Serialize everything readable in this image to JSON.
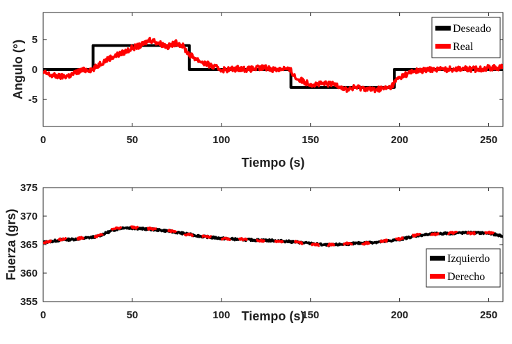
{
  "chart_data": [
    {
      "type": "line",
      "xlabel": "Tiempo (s)",
      "ylabel": "Angulo (°)",
      "xlim": [
        0,
        258
      ],
      "ylim": [
        -9.5,
        9.5
      ],
      "xticks": [
        0,
        50,
        100,
        150,
        200,
        250
      ],
      "yticks": [
        -5,
        0,
        5
      ],
      "legend_position": "top-right",
      "series": [
        {
          "name": "Deseado",
          "color": "#000000",
          "style": "step",
          "x": [
            0,
            28,
            28,
            82,
            82,
            139,
            139,
            197,
            197,
            258
          ],
          "y": [
            0,
            0,
            4,
            4,
            0,
            0,
            -3,
            -3,
            0,
            0
          ]
        },
        {
          "name": "Real",
          "color": "#ff0000",
          "style": "noisy",
          "x": [
            0,
            5,
            10,
            15,
            20,
            25,
            28,
            32,
            38,
            45,
            50,
            55,
            58,
            60,
            65,
            70,
            75,
            78,
            82,
            88,
            95,
            100,
            105,
            110,
            115,
            120,
            125,
            130,
            135,
            139,
            142,
            148,
            152,
            158,
            165,
            170,
            175,
            180,
            185,
            190,
            195,
            198,
            202,
            208,
            215,
            220,
            225,
            230,
            235,
            240,
            245,
            250,
            255,
            258
          ],
          "y": [
            -0.5,
            -1.0,
            -1.2,
            -1.0,
            -0.3,
            0.0,
            0.0,
            1.0,
            2.0,
            2.8,
            3.6,
            4.0,
            4.6,
            5.0,
            4.4,
            3.8,
            4.5,
            4.0,
            2.5,
            1.4,
            0.5,
            0.0,
            0.0,
            0.2,
            0.0,
            0.2,
            0.3,
            0.0,
            0.2,
            -0.2,
            -1.5,
            -2.2,
            -2.5,
            -2.4,
            -2.5,
            -3.4,
            -3.0,
            -3.1,
            -3.4,
            -3.2,
            -3.0,
            -1.8,
            -1.0,
            -0.3,
            -0.1,
            0.1,
            0.0,
            0.1,
            0.2,
            0.0,
            0.1,
            0.3,
            0.3,
            0.5
          ]
        }
      ]
    },
    {
      "type": "line",
      "xlabel": "Tiempo (s)",
      "ylabel": "Fuerza (grs)",
      "xlim": [
        0,
        258
      ],
      "ylim": [
        355,
        375
      ],
      "xticks": [
        0,
        50,
        100,
        150,
        200,
        250
      ],
      "yticks": [
        355,
        360,
        365,
        370,
        375
      ],
      "legend_position": "bottom-right",
      "series": [
        {
          "name": "Izquierdo",
          "color": "#000000",
          "x": [
            0,
            10,
            20,
            30,
            40,
            45,
            50,
            60,
            70,
            80,
            90,
            100,
            110,
            120,
            130,
            140,
            150,
            160,
            170,
            180,
            190,
            200,
            210,
            220,
            230,
            240,
            250,
            258
          ],
          "y": [
            365.4,
            365.8,
            366.0,
            366.4,
            367.6,
            368.0,
            367.9,
            367.7,
            367.4,
            366.9,
            366.4,
            366.1,
            365.9,
            365.8,
            365.7,
            365.5,
            365.2,
            364.9,
            365.1,
            365.3,
            365.5,
            365.9,
            366.6,
            366.9,
            367.0,
            367.1,
            367.0,
            366.5
          ]
        },
        {
          "name": "Derecho",
          "color": "#ff0000",
          "x": [
            0,
            10,
            20,
            30,
            40,
            45,
            50,
            60,
            70,
            80,
            90,
            100,
            110,
            120,
            130,
            140,
            150,
            160,
            170,
            180,
            190,
            200,
            210,
            220,
            230,
            240,
            250,
            258
          ],
          "y": [
            365.3,
            365.9,
            366.1,
            366.5,
            367.8,
            367.9,
            368.0,
            367.8,
            367.5,
            366.8,
            366.5,
            366.0,
            366.0,
            365.7,
            365.6,
            365.6,
            365.0,
            365.0,
            365.2,
            365.2,
            365.6,
            366.0,
            366.7,
            366.8,
            367.1,
            367.0,
            367.1,
            366.6
          ]
        }
      ]
    }
  ]
}
